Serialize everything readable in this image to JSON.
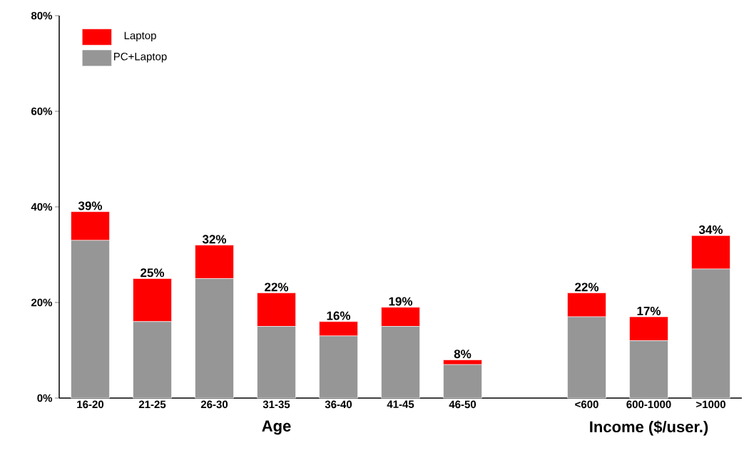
{
  "chart_data": {
    "type": "bar",
    "stacked": true,
    "categories": [
      "16-20",
      "21-25",
      "26-30",
      "31-35",
      "36-40",
      "41-45",
      "46-50",
      null,
      "<600",
      "600-1000",
      ">1000"
    ],
    "series": [
      {
        "name": "PC+Laptop",
        "color": "#969696",
        "values": [
          33,
          16,
          25,
          15,
          13,
          15,
          7,
          null,
          17,
          12,
          27
        ]
      },
      {
        "name": "Laptop",
        "color": "#ff0000",
        "values": [
          6,
          9,
          7,
          7,
          3,
          4,
          1,
          null,
          5,
          5,
          7
        ]
      }
    ],
    "totals": [
      "39%",
      "25%",
      "32%",
      "22%",
      "16%",
      "19%",
      "8%",
      null,
      "22%",
      "17%",
      "34%"
    ],
    "xlabel": "Age",
    "annotations": [
      "Income ($/user.)"
    ],
    "ylim": [
      0,
      80
    ],
    "yticks": [
      {
        "value": 0,
        "label": "0%"
      },
      {
        "value": 20,
        "label": "20%"
      },
      {
        "value": 40,
        "label": "40%"
      },
      {
        "value": 60,
        "label": "60%"
      },
      {
        "value": 80,
        "label": "80%"
      }
    ],
    "legend": "top left",
    "grid": false
  }
}
